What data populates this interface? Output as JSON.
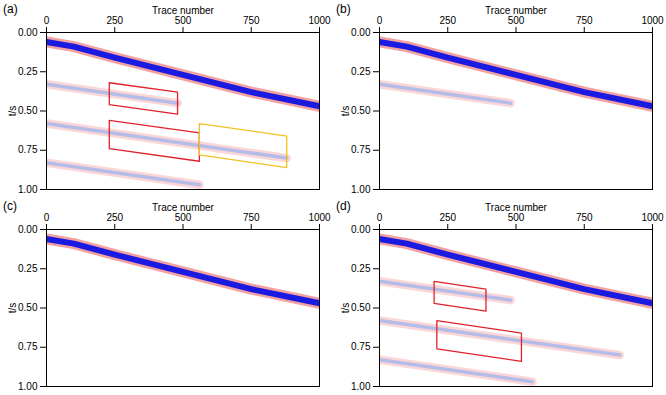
{
  "chart_data": [
    {
      "type": "line",
      "title": "(a)",
      "x_label": "Trace number",
      "y_label": "t/s",
      "xlim": [
        0,
        1000
      ],
      "ylim": [
        0,
        1
      ],
      "xticks": [
        0,
        250,
        500,
        750,
        1000
      ],
      "yticks": [
        {
          "value": 0,
          "label": "0.00"
        },
        {
          "value": 0.25,
          "label": "0.25"
        },
        {
          "value": 0.5,
          "label": "0.50"
        },
        {
          "value": 0.75,
          "label": "0.75"
        },
        {
          "value": 1,
          "label": "1.00"
        }
      ],
      "series": [
        {
          "color": "#1a1ae0",
          "x": [
            0,
            100,
            250,
            500,
            750,
            1000
          ],
          "values": [
            0.06,
            0.09,
            0.16,
            0.27,
            0.38,
            0.47
          ]
        },
        {
          "color": "#b4bce8",
          "x": [
            0,
            480
          ],
          "values": [
            0.33,
            0.45
          ]
        },
        {
          "color": "#b4bce8",
          "x": [
            0,
            880
          ],
          "values": [
            0.58,
            0.8
          ]
        },
        {
          "color": "#b4bce8",
          "x": [
            0,
            560
          ],
          "values": [
            0.83,
            0.97
          ]
        }
      ],
      "boxes": [
        {
          "color": "#e0202a",
          "x": [
            230,
            480,
            480,
            230
          ],
          "y": [
            0.32,
            0.38,
            0.52,
            0.46
          ]
        },
        {
          "color": "#e0202a",
          "x": [
            230,
            560,
            560,
            230
          ],
          "y": [
            0.56,
            0.64,
            0.82,
            0.74
          ]
        },
        {
          "color": "#f0c020",
          "x": [
            560,
            880,
            880,
            560
          ],
          "y": [
            0.58,
            0.66,
            0.86,
            0.78
          ]
        }
      ]
    },
    {
      "type": "line",
      "title": "(b)",
      "x_label": "Trace number",
      "y_label": "t/s",
      "xlim": [
        0,
        1000
      ],
      "ylim": [
        0,
        1
      ],
      "xticks": [
        0,
        250,
        500,
        750,
        1000
      ],
      "yticks": [
        {
          "value": 0,
          "label": "0.00"
        },
        {
          "value": 0.25,
          "label": "0.25"
        },
        {
          "value": 0.5,
          "label": "0.50"
        },
        {
          "value": 0.75,
          "label": "0.75"
        },
        {
          "value": 1,
          "label": "1.00"
        }
      ],
      "series": [
        {
          "color": "#1a1ae0",
          "x": [
            0,
            100,
            250,
            500,
            750,
            1000
          ],
          "values": [
            0.06,
            0.09,
            0.16,
            0.27,
            0.38,
            0.47
          ]
        },
        {
          "color": "#b4bce8",
          "x": [
            0,
            480
          ],
          "values": [
            0.33,
            0.45
          ]
        }
      ],
      "boxes": []
    },
    {
      "type": "line",
      "title": "(c)",
      "x_label": "Trace number",
      "y_label": "t/s",
      "xlim": [
        0,
        1000
      ],
      "ylim": [
        0,
        1
      ],
      "xticks": [
        0,
        250,
        500,
        750,
        1000
      ],
      "yticks": [
        {
          "value": 0,
          "label": "0.00"
        },
        {
          "value": 0.25,
          "label": "0.25"
        },
        {
          "value": 0.5,
          "label": "0.50"
        },
        {
          "value": 0.75,
          "label": "0.75"
        },
        {
          "value": 1,
          "label": "1.00"
        }
      ],
      "series": [
        {
          "color": "#1a1ae0",
          "x": [
            0,
            100,
            250,
            500,
            750,
            1000
          ],
          "values": [
            0.06,
            0.09,
            0.16,
            0.27,
            0.38,
            0.47
          ]
        }
      ],
      "boxes": []
    },
    {
      "type": "line",
      "title": "(d)",
      "x_label": "Trace number",
      "y_label": "t/s",
      "xlim": [
        0,
        1000
      ],
      "ylim": [
        0,
        1
      ],
      "xticks": [
        0,
        250,
        500,
        750,
        1000
      ],
      "yticks": [
        {
          "value": 0,
          "label": "0.00"
        },
        {
          "value": 0.25,
          "label": "0.25"
        },
        {
          "value": 0.5,
          "label": "0.50"
        },
        {
          "value": 0.75,
          "label": "0.75"
        },
        {
          "value": 1,
          "label": "1.00"
        }
      ],
      "series": [
        {
          "color": "#1a1ae0",
          "x": [
            0,
            100,
            250,
            500,
            750,
            1000
          ],
          "values": [
            0.06,
            0.09,
            0.16,
            0.27,
            0.38,
            0.47
          ]
        },
        {
          "color": "#b4bce8",
          "x": [
            0,
            480
          ],
          "values": [
            0.33,
            0.45
          ]
        },
        {
          "color": "#b4bce8",
          "x": [
            0,
            880
          ],
          "values": [
            0.58,
            0.8
          ]
        },
        {
          "color": "#b4bce8",
          "x": [
            0,
            560
          ],
          "values": [
            0.83,
            0.97
          ]
        }
      ],
      "boxes": [
        {
          "color": "#e0202a",
          "x": [
            200,
            390,
            390,
            200
          ],
          "y": [
            0.33,
            0.38,
            0.52,
            0.47
          ]
        },
        {
          "color": "#e0202a",
          "x": [
            210,
            520,
            520,
            210
          ],
          "y": [
            0.58,
            0.66,
            0.84,
            0.76
          ]
        }
      ]
    }
  ]
}
